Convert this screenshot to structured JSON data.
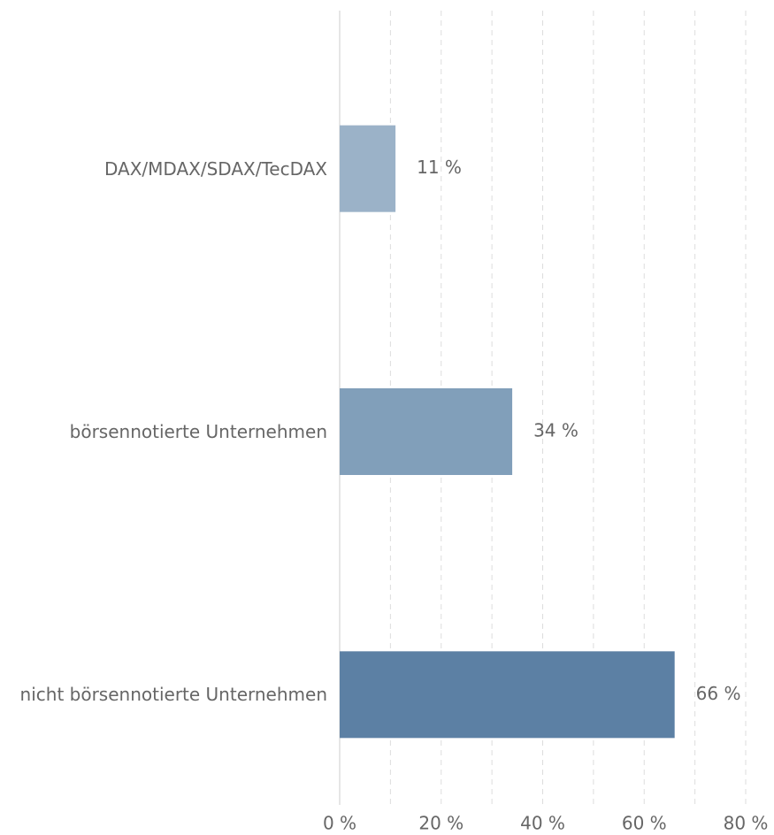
{
  "chart_data": {
    "type": "barh",
    "categories": [
      "DAX/MDAX/SDAX/TecDAX",
      "börsennotierte Unternehmen",
      "nicht börsennotierte Unternehmen"
    ],
    "values": [
      11,
      34,
      66
    ],
    "value_labels": [
      "11 %",
      "34 %",
      "66 %"
    ],
    "colors": [
      "#9bb2c8",
      "#819fba",
      "#5c80a4"
    ],
    "xlim": [
      0,
      80
    ],
    "xticks": [
      {
        "value": 0,
        "label": "0 %"
      },
      {
        "value": 20,
        "label": "20 %"
      },
      {
        "value": 40,
        "label": "40 %"
      },
      {
        "value": 60,
        "label": "60 %"
      },
      {
        "value": 80,
        "label": "80 %"
      }
    ],
    "minor_xticks": [
      10,
      30,
      50,
      70
    ],
    "grid": true
  }
}
